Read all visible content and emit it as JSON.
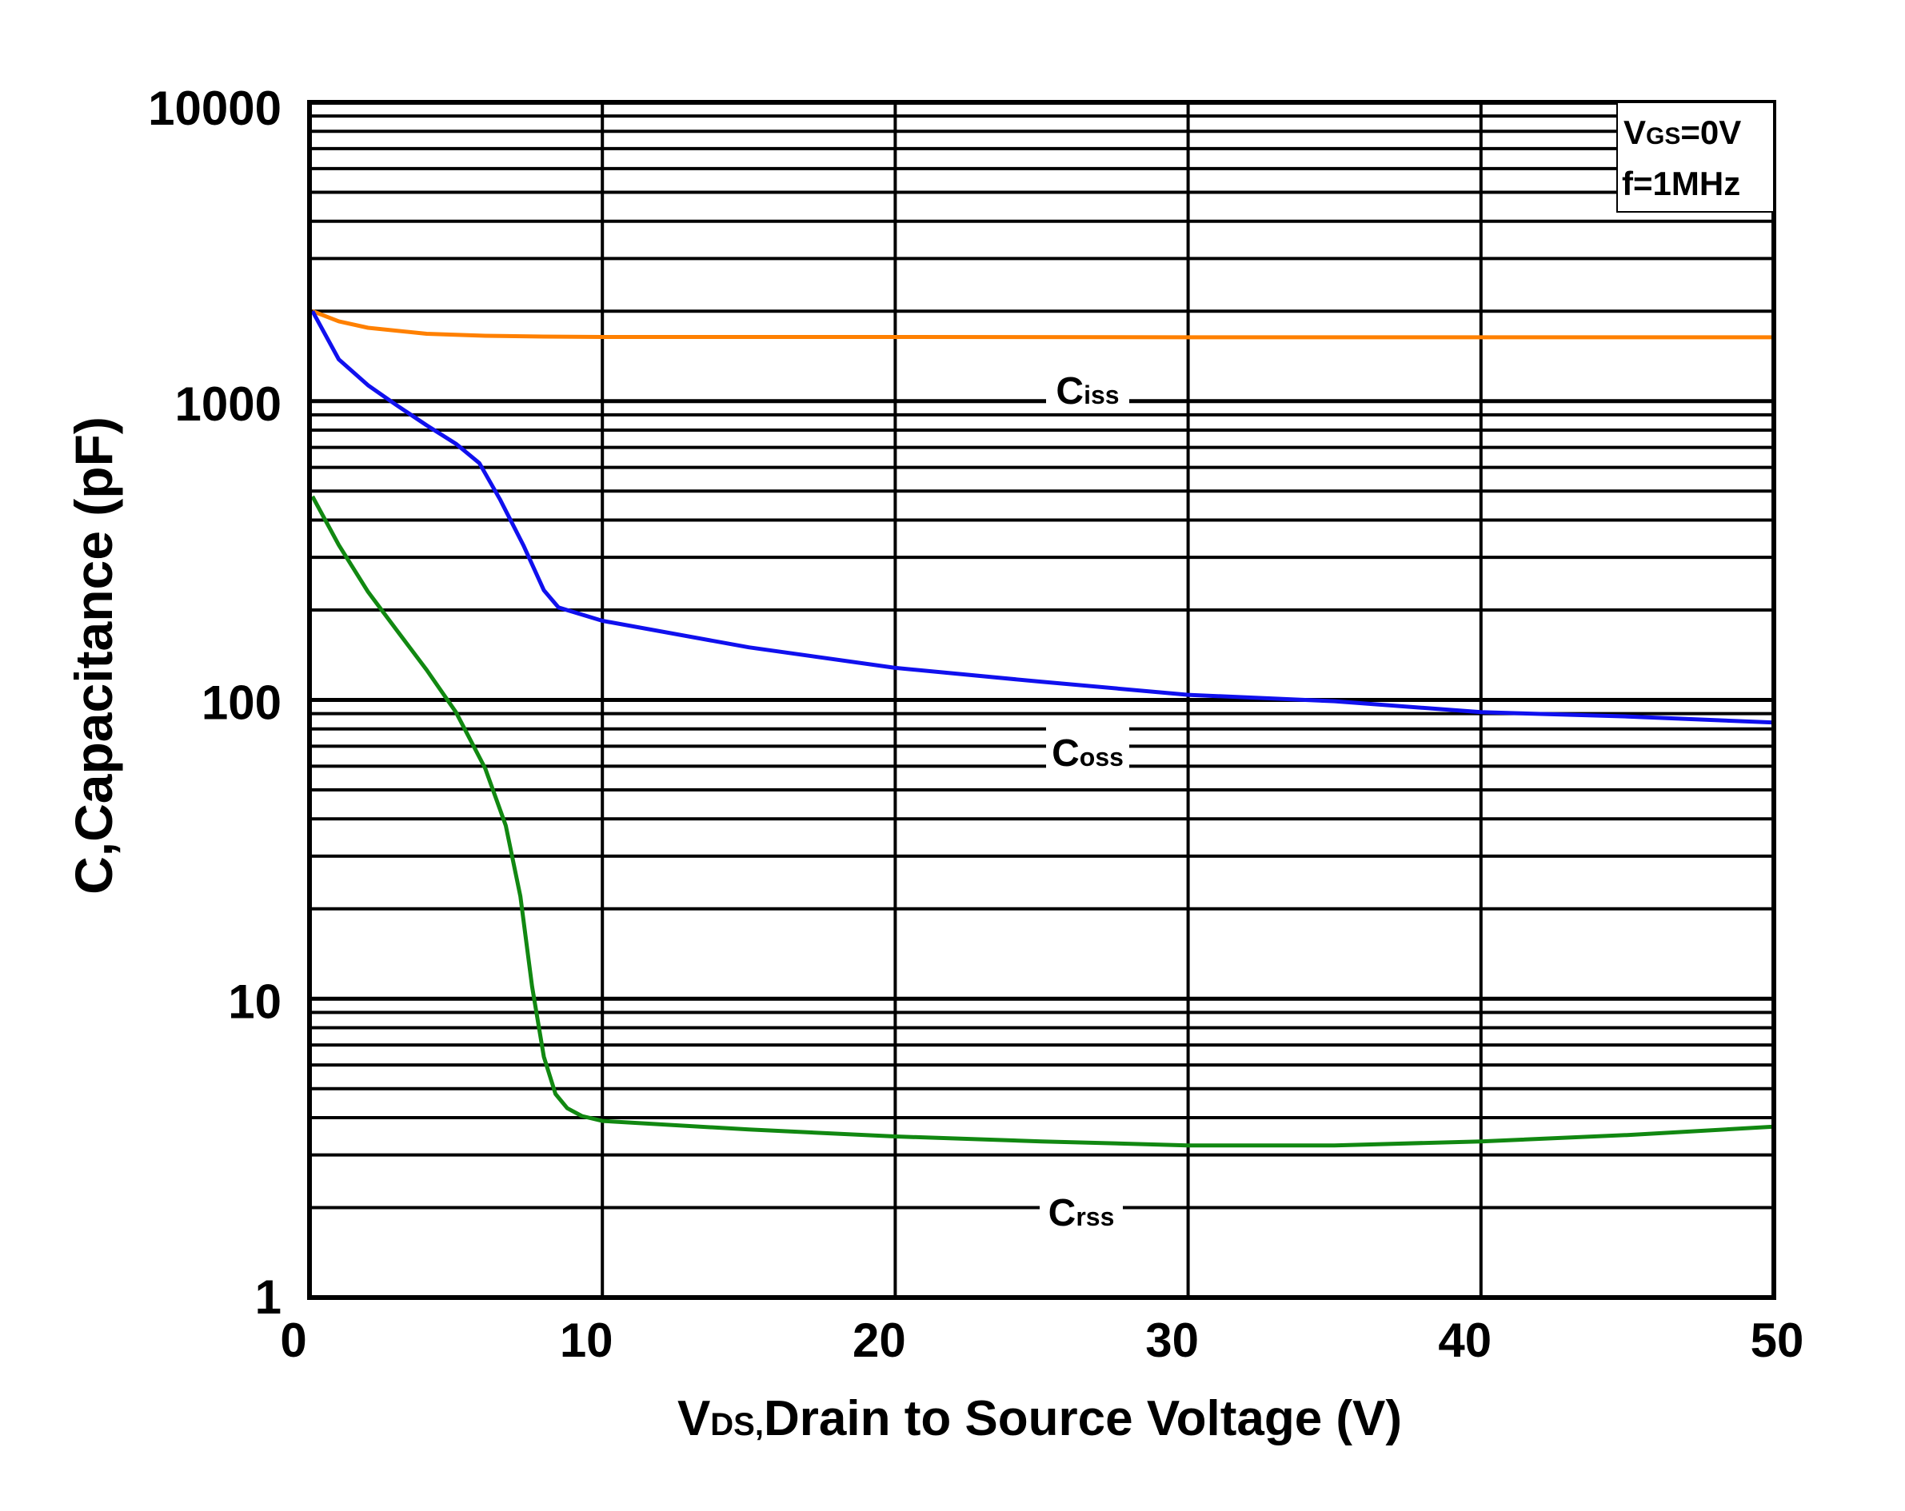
{
  "chart_data": {
    "type": "line",
    "title": "",
    "xlabel_main": "V",
    "xlabel_sub": "DS,",
    "xlabel_rest": "Drain to Source Voltage (V)",
    "ylabel": "C,Capacitance (pF)",
    "xlim": [
      0,
      50
    ],
    "ylim": [
      1,
      10000
    ],
    "yscale": "log",
    "grid": true,
    "xticks": [
      0,
      10,
      20,
      30,
      40,
      50
    ],
    "xtick_labels": [
      "0",
      "10",
      "20",
      "30",
      "40",
      "50"
    ],
    "yticks": [
      1,
      10,
      100,
      1000,
      10000
    ],
    "ytick_labels": [
      "1",
      "10",
      "100",
      "1000",
      "10000"
    ],
    "conditions": {
      "line1_main": "V",
      "line1_sub": "GS",
      "line1_rest": "=0V",
      "line2": "f=1MHz",
      "placement": "top-right"
    },
    "series": [
      {
        "name": "Ciss",
        "label_main": "C",
        "label_sub": "iss",
        "color": "#ff8000",
        "x": [
          0.1,
          1,
          2,
          4,
          6,
          8,
          10,
          20,
          30,
          40,
          50
        ],
        "y": [
          2000,
          1850,
          1760,
          1680,
          1655,
          1645,
          1640,
          1640,
          1635,
          1635,
          1635
        ]
      },
      {
        "name": "Coss",
        "label_main": "C",
        "label_sub": "oss",
        "color": "#1010ee",
        "x": [
          0.1,
          1,
          2,
          3,
          4,
          5,
          5.8,
          6.5,
          7.3,
          8,
          8.5,
          10,
          15,
          20,
          25,
          30,
          35,
          40,
          45,
          50
        ],
        "y": [
          2000,
          1380,
          1130,
          965,
          830,
          720,
          620,
          470,
          330,
          233,
          204,
          184,
          150,
          128,
          115,
          104,
          99,
          91,
          88,
          84
        ]
      },
      {
        "name": "Crss",
        "label_main": "C",
        "label_sub": "rss",
        "color": "#118811",
        "x": [
          0.1,
          1,
          2,
          3,
          4,
          5,
          6,
          6.7,
          7.2,
          7.6,
          8,
          8.4,
          8.8,
          9.3,
          10,
          15,
          20,
          25,
          30,
          35,
          40,
          45,
          50
        ],
        "y": [
          480,
          330,
          230,
          170,
          126,
          91,
          59,
          38,
          22,
          11,
          6.4,
          4.8,
          4.3,
          4.05,
          3.9,
          3.65,
          3.46,
          3.33,
          3.23,
          3.23,
          3.33,
          3.5,
          3.73
        ]
      }
    ]
  }
}
